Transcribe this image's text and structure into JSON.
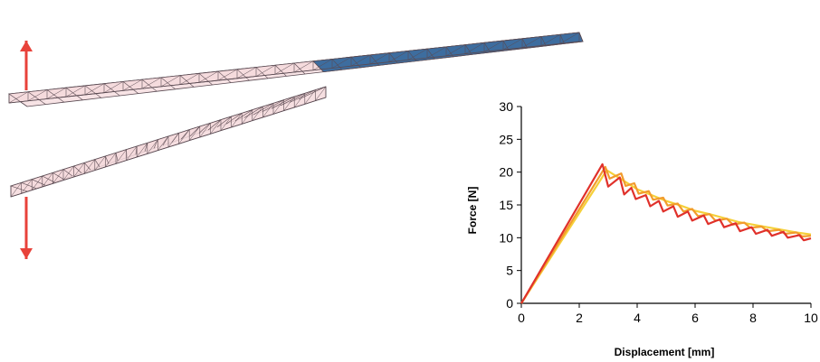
{
  "figure": {
    "colors": {
      "mesh_fill": "#f4d9dc",
      "mesh_stroke": "#5a4a52",
      "bonded_fill": "#3d6d9f",
      "arrow": "#e8423a"
    }
  },
  "chart_data": {
    "type": "line",
    "title": "",
    "xlabel": "Displacement [mm]",
    "ylabel": "Force [N]",
    "xlim": [
      0,
      10
    ],
    "ylim": [
      0,
      30
    ],
    "xticks": [
      "0",
      "2",
      "4",
      "6",
      "8",
      "10"
    ],
    "yticks": [
      "0",
      "5",
      "10",
      "15",
      "20",
      "25",
      "30"
    ],
    "grid": false,
    "legend": "none",
    "series": [
      {
        "color": "#f5d03a",
        "x": [
          0,
          2.95,
          3.2,
          3.6,
          4.0,
          4.5,
          5.0,
          5.5,
          6.0,
          6.5,
          7.0,
          7.5,
          8.0,
          8.5,
          9.0,
          9.5,
          10.0
        ],
        "y": [
          0,
          20.3,
          19.6,
          18.5,
          17.4,
          16.5,
          15.6,
          14.9,
          14.1,
          13.6,
          13.0,
          12.4,
          12.0,
          11.6,
          11.2,
          10.8,
          10.5
        ]
      },
      {
        "color": "#f29b2c",
        "x": [
          0,
          2.9,
          3.05,
          3.45,
          3.6,
          3.9,
          4.05,
          4.4,
          4.55,
          4.9,
          5.05,
          5.4,
          5.6,
          5.9,
          6.1,
          6.5,
          6.7,
          7.1,
          7.3,
          7.7,
          7.9,
          8.3,
          8.5,
          8.9,
          9.1,
          9.5,
          9.7,
          10.0
        ],
        "y": [
          0,
          20.8,
          19.0,
          19.8,
          17.9,
          18.3,
          16.7,
          17.1,
          15.8,
          16.1,
          14.9,
          15.2,
          14.0,
          14.4,
          13.3,
          13.6,
          12.6,
          12.9,
          12.0,
          12.3,
          11.5,
          11.7,
          11.0,
          11.2,
          10.6,
          10.8,
          10.2,
          10.3
        ]
      },
      {
        "color": "#e0312b",
        "x": [
          0,
          2.8,
          3.0,
          3.4,
          3.55,
          3.8,
          3.95,
          4.3,
          4.45,
          4.75,
          4.9,
          5.25,
          5.4,
          5.75,
          5.9,
          6.3,
          6.45,
          6.85,
          7.0,
          7.4,
          7.55,
          7.95,
          8.1,
          8.5,
          8.65,
          9.05,
          9.2,
          9.6,
          9.75,
          10.0
        ],
        "y": [
          0,
          21.2,
          17.8,
          19.2,
          16.6,
          17.6,
          15.9,
          16.5,
          14.8,
          15.6,
          14.0,
          14.8,
          13.2,
          14.0,
          12.6,
          13.4,
          12.1,
          12.8,
          11.6,
          12.2,
          11.0,
          11.6,
          10.6,
          11.2,
          10.3,
          10.9,
          10.0,
          10.4,
          9.6,
          9.9
        ]
      }
    ]
  }
}
